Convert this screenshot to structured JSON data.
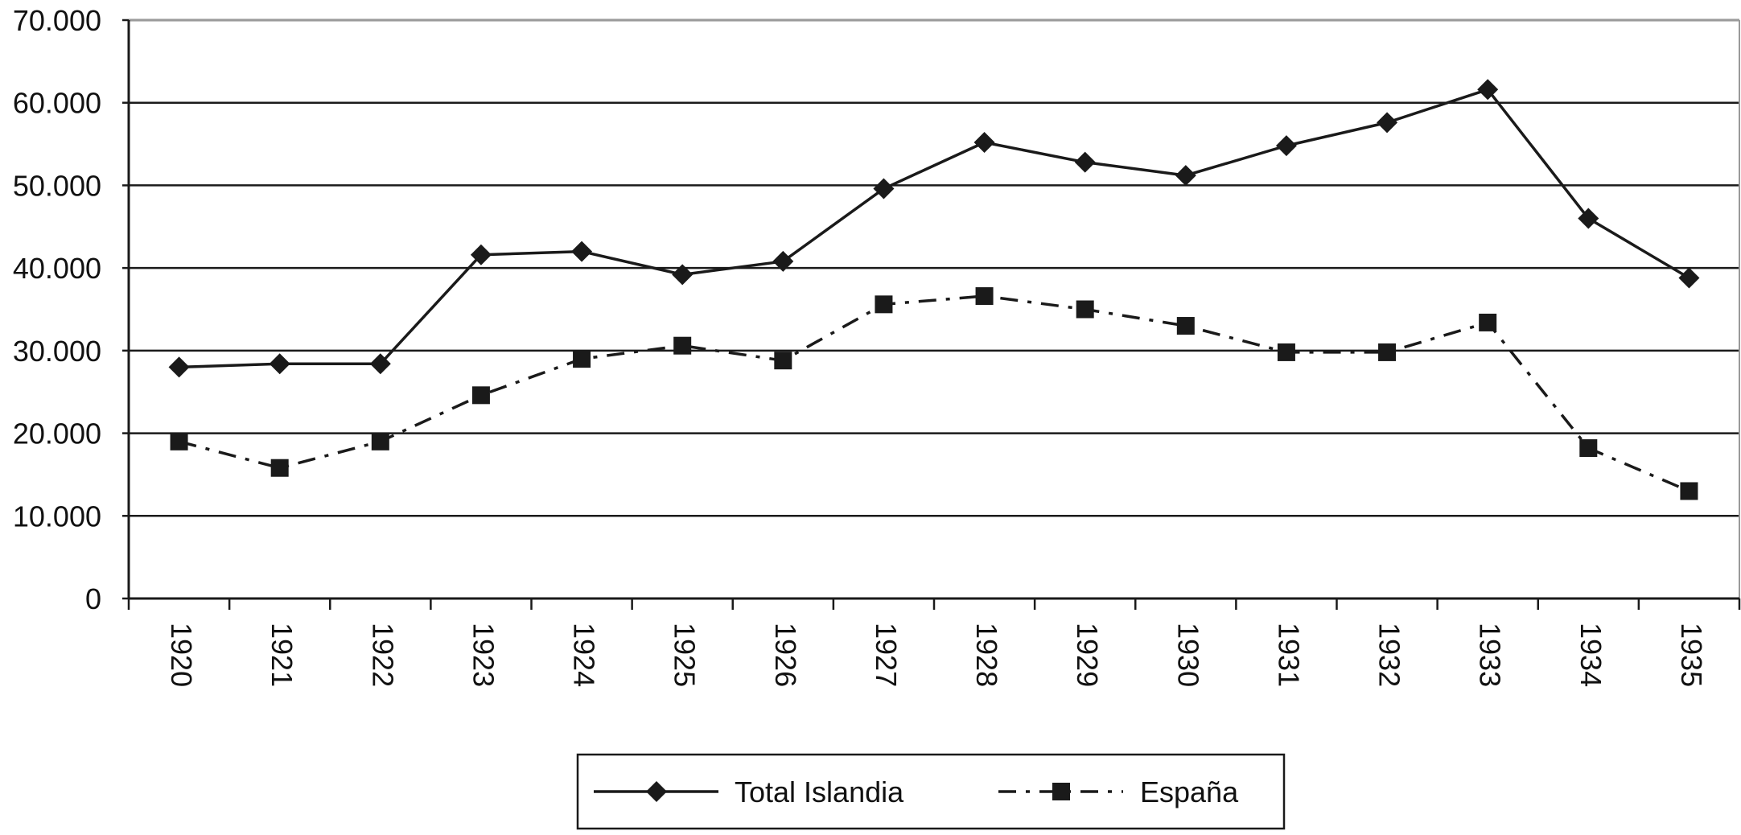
{
  "chart_data": {
    "type": "line",
    "title": "",
    "xlabel": "",
    "ylabel": "",
    "categories": [
      "1920",
      "1921",
      "1922",
      "1923",
      "1924",
      "1925",
      "1926",
      "1927",
      "1928",
      "1929",
      "1930",
      "1931",
      "1932",
      "1933",
      "1934",
      "1935"
    ],
    "y_ticks": [
      "0",
      "10.000",
      "20.000",
      "30.000",
      "40.000",
      "50.000",
      "60.000",
      "70.000"
    ],
    "ylim": [
      0,
      70000
    ],
    "grid": "horizontal",
    "legend_position": "bottom-center",
    "series": [
      {
        "name": "Total Islandia",
        "line_style": "solid",
        "marker": "diamond",
        "color": "#1a1a1a",
        "values": [
          28000,
          28400,
          28400,
          41600,
          42000,
          39200,
          40800,
          49600,
          55200,
          52800,
          51200,
          54800,
          57600,
          61600,
          46000,
          38800
        ]
      },
      {
        "name": "España",
        "line_style": "dash-dot",
        "marker": "square",
        "color": "#1a1a1a",
        "values": [
          19000,
          15800,
          19000,
          24600,
          29000,
          30600,
          28800,
          35600,
          36600,
          35000,
          33000,
          29800,
          29800,
          33400,
          18200,
          13000
        ]
      }
    ]
  }
}
